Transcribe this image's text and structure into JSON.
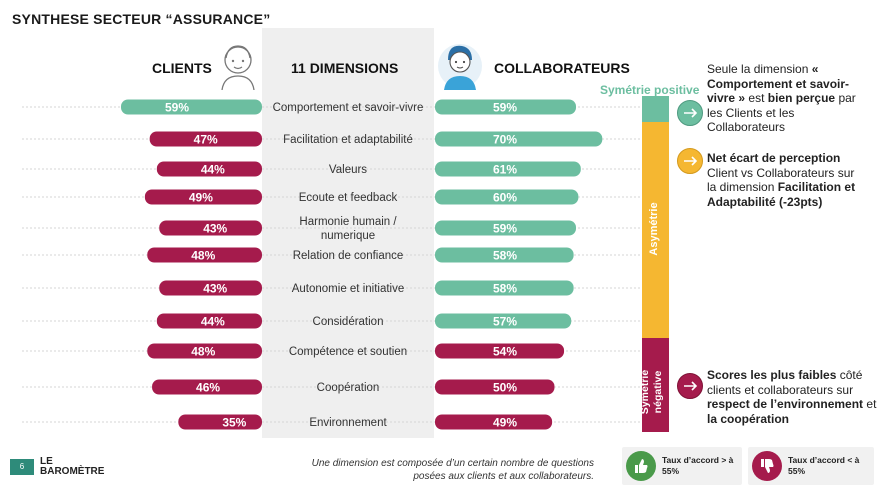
{
  "title": "SYNTHESE SECTEUR “ASSURANCE”",
  "headers": {
    "clients": "CLIENTS",
    "dimensions": "11 DIMENSIONS",
    "collaborateurs": "COLLABORATEURS"
  },
  "colors": {
    "clients_bar": "#a51b4c",
    "clients_bar_highlight": "#6cbea0",
    "collab_bar": "#6cbea0",
    "collab_bar_low": "#a51b4c",
    "symetrie_positive": "#6cbea0",
    "asymetrie": "#f5b731",
    "symetrie_negative": "#a51b4c"
  },
  "chart_data": {
    "type": "bar",
    "categories": [
      "Comportement et savoir-vivre",
      "Facilitation et adaptabilité",
      "Valeurs",
      "Ecoute et feedback",
      "Harmonie humain / numerique",
      "Relation de confiance",
      "Autonomie et initiative",
      "Considération",
      "Compétence et soutien",
      "Coopération",
      "Environnement"
    ],
    "series": [
      {
        "name": "CLIENTS",
        "values": [
          59,
          47,
          44,
          49,
          43,
          48,
          43,
          44,
          48,
          46,
          35
        ]
      },
      {
        "name": "COLLABORATEURS",
        "values": [
          59,
          70,
          61,
          60,
          59,
          58,
          58,
          57,
          54,
          50,
          49
        ]
      }
    ],
    "value_labels": {
      "clients": [
        "59%",
        "47%",
        "44%",
        "49%",
        "43%",
        "48%",
        "43%",
        "44%",
        "48%",
        "46%",
        "35%"
      ],
      "collaborateurs": [
        "59%",
        "70%",
        "61%",
        "60%",
        "59%",
        "58%",
        "58%",
        "57%",
        "54%",
        "50%",
        "49%"
      ]
    },
    "category_lines": [
      [
        "Comportement et savoir-vivre"
      ],
      [
        "Facilitation et adaptabilité"
      ],
      [
        "Valeurs"
      ],
      [
        "Ecoute et feedback"
      ],
      [
        "Harmonie humain /",
        "numerique"
      ],
      [
        "Relation de confiance"
      ],
      [
        "Autonomie et initiative"
      ],
      [
        "Considération"
      ],
      [
        "Compétence et soutien"
      ],
      [
        "Coopération"
      ],
      [
        "Environnement"
      ]
    ],
    "highlight_threshold": 55
  },
  "zones": {
    "positive": "Symétrie positive",
    "asymetrie": "Asymétrie",
    "negative_line1": "Symétrie",
    "negative_line2": "négative"
  },
  "notes": {
    "n1_a": "Seule la dimension",
    "n1_b": "« Comportement et savoir-vivre »",
    "n1_c": "est",
    "n1_d": "bien perçue",
    "n1_e": "par les Clients et les Collaborateurs",
    "n2_a": "Net  écart de perception",
    "n2_b": "Client vs Collaborateurs sur la dimension",
    "n2_c": "Facilitation et Adaptabilité",
    "n2_d": "(-23pts)",
    "n3_a": "Scores les plus faibles",
    "n3_b": "côté clients et collaborateurs sur",
    "n3_c": "respect de l’environnement",
    "n3_d": "et",
    "n3_e": "la coopération"
  },
  "footer": {
    "note": "Une dimension est composée d’un certain nombre de questions posées aux clients et aux collaborateurs.",
    "logo_line1": "LE",
    "logo_line2": "BAROMÈTRE",
    "page_number": "6",
    "legend_agree": "Taux d’accord > à 55%",
    "legend_disagree": "Taux d’accord < à 55%"
  }
}
